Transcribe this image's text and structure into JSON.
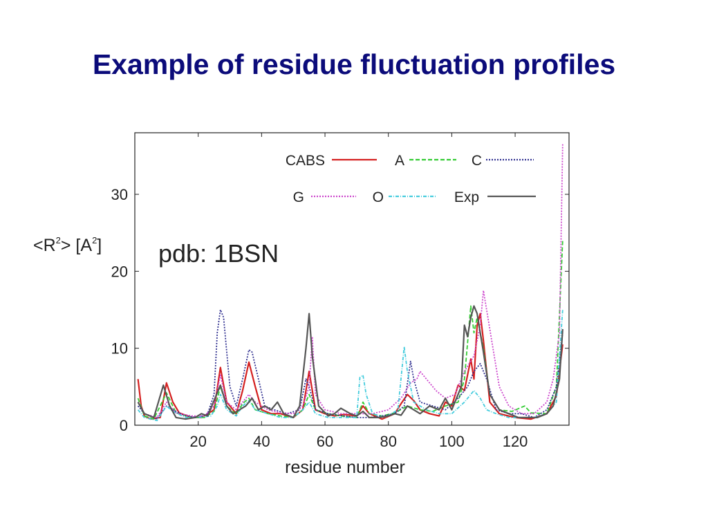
{
  "slide": {
    "title": "Example of residue fluctuation profiles"
  },
  "chart_data": {
    "type": "line",
    "annotation": "pdb: 1BSN",
    "xlabel": "residue number",
    "ylabel": {
      "main": "<R",
      "sup1": "2",
      "mid": "> [A",
      "sup2": "2",
      "end": "]"
    },
    "xlim": [
      0,
      137
    ],
    "ylim": [
      0,
      38
    ],
    "xticks": [
      20,
      40,
      60,
      80,
      100,
      120
    ],
    "yticks": [
      0,
      10,
      20,
      30
    ],
    "legend_placement": "top-right",
    "series": [
      {
        "name": "CABS",
        "color": "#d42020",
        "dash": "solid",
        "points": [
          [
            1,
            6
          ],
          [
            2,
            2.5
          ],
          [
            3,
            1.2
          ],
          [
            5,
            0.8
          ],
          [
            8,
            1
          ],
          [
            10,
            5.5
          ],
          [
            12,
            3
          ],
          [
            14,
            1.6
          ],
          [
            18,
            1
          ],
          [
            21,
            1
          ],
          [
            25,
            2
          ],
          [
            27,
            7.5
          ],
          [
            29,
            3
          ],
          [
            32,
            1.5
          ],
          [
            34,
            4.5
          ],
          [
            36,
            8.2
          ],
          [
            38,
            5
          ],
          [
            40,
            2
          ],
          [
            43,
            1.5
          ],
          [
            46,
            1.5
          ],
          [
            50,
            1
          ],
          [
            53,
            2
          ],
          [
            55,
            7
          ],
          [
            57,
            2
          ],
          [
            60,
            1.5
          ],
          [
            63,
            1.2
          ],
          [
            66,
            1.4
          ],
          [
            70,
            1.2
          ],
          [
            72,
            2.5
          ],
          [
            74,
            1.5
          ],
          [
            78,
            0.8
          ],
          [
            82,
            1.5
          ],
          [
            84,
            2.8
          ],
          [
            86,
            4
          ],
          [
            88,
            3.2
          ],
          [
            90,
            2
          ],
          [
            93,
            1.5
          ],
          [
            96,
            1.2
          ],
          [
            98,
            3
          ],
          [
            100,
            2.5
          ],
          [
            102,
            5.2
          ],
          [
            104,
            4.5
          ],
          [
            106,
            8.6
          ],
          [
            107,
            6
          ],
          [
            108,
            13
          ],
          [
            109,
            14.5
          ],
          [
            110,
            11
          ],
          [
            112,
            3
          ],
          [
            115,
            1.5
          ],
          [
            120,
            1
          ],
          [
            125,
            0.8
          ],
          [
            130,
            1.5
          ],
          [
            133,
            3.8
          ],
          [
            135,
            10.5
          ]
        ]
      },
      {
        "name": "A",
        "color": "#33cc33",
        "dash": "6,3",
        "points": [
          [
            1,
            3.5
          ],
          [
            3,
            1.2
          ],
          [
            6,
            0.8
          ],
          [
            10,
            4.2
          ],
          [
            13,
            1.6
          ],
          [
            18,
            1
          ],
          [
            22,
            1
          ],
          [
            25,
            1.8
          ],
          [
            27,
            5
          ],
          [
            29,
            2.5
          ],
          [
            32,
            1.4
          ],
          [
            34,
            2.8
          ],
          [
            36,
            3.5
          ],
          [
            38,
            2
          ],
          [
            42,
            1.5
          ],
          [
            46,
            1.2
          ],
          [
            50,
            1
          ],
          [
            53,
            2
          ],
          [
            55,
            4
          ],
          [
            57,
            2
          ],
          [
            61,
            1.5
          ],
          [
            65,
            1.2
          ],
          [
            70,
            1
          ],
          [
            72,
            3
          ],
          [
            74,
            1.5
          ],
          [
            78,
            1.2
          ],
          [
            82,
            1.6
          ],
          [
            86,
            2.5
          ],
          [
            90,
            2
          ],
          [
            94,
            1.8
          ],
          [
            98,
            2.5
          ],
          [
            102,
            3
          ],
          [
            104,
            6
          ],
          [
            106,
            15.5
          ],
          [
            107,
            12
          ],
          [
            108,
            14
          ],
          [
            110,
            10
          ],
          [
            112,
            4
          ],
          [
            115,
            2
          ],
          [
            119,
            1.8
          ],
          [
            123,
            2.5
          ],
          [
            125,
            1.6
          ],
          [
            130,
            1.5
          ],
          [
            133,
            5
          ],
          [
            135,
            24
          ]
        ]
      },
      {
        "name": "C",
        "color": "#303090",
        "dash": "2,2",
        "points": [
          [
            1,
            2.5
          ],
          [
            3,
            1.5
          ],
          [
            7,
            0.8
          ],
          [
            10,
            2.5
          ],
          [
            12,
            2
          ],
          [
            16,
            1.2
          ],
          [
            20,
            1
          ],
          [
            23,
            1.5
          ],
          [
            25,
            4
          ],
          [
            26,
            12
          ],
          [
            27,
            15
          ],
          [
            28,
            14
          ],
          [
            30,
            5
          ],
          [
            32,
            2.5
          ],
          [
            34,
            6
          ],
          [
            36,
            9.8
          ],
          [
            37,
            9.5
          ],
          [
            39,
            6
          ],
          [
            41,
            2.5
          ],
          [
            44,
            2
          ],
          [
            48,
            1.5
          ],
          [
            52,
            2
          ],
          [
            54,
            6
          ],
          [
            55,
            5
          ],
          [
            57,
            2
          ],
          [
            61,
            1.5
          ],
          [
            66,
            1.2
          ],
          [
            70,
            1
          ],
          [
            74,
            1
          ],
          [
            78,
            1.2
          ],
          [
            82,
            1.5
          ],
          [
            85,
            2.5
          ],
          [
            87,
            8.3
          ],
          [
            88,
            6
          ],
          [
            90,
            3
          ],
          [
            94,
            2.5
          ],
          [
            98,
            2
          ],
          [
            102,
            3.5
          ],
          [
            105,
            5
          ],
          [
            107,
            7
          ],
          [
            109,
            8
          ],
          [
            111,
            6
          ],
          [
            114,
            2
          ],
          [
            118,
            1.5
          ],
          [
            122,
            1.5
          ],
          [
            126,
            1
          ],
          [
            130,
            2
          ],
          [
            133,
            5
          ],
          [
            135,
            12
          ]
        ]
      },
      {
        "name": "G",
        "color": "#cc44cc",
        "dash": "2,2",
        "points": [
          [
            1,
            3
          ],
          [
            3,
            1.5
          ],
          [
            7,
            1
          ],
          [
            10,
            3
          ],
          [
            13,
            1.6
          ],
          [
            18,
            1.2
          ],
          [
            22,
            1.2
          ],
          [
            25,
            2.5
          ],
          [
            27,
            6.5
          ],
          [
            29,
            3
          ],
          [
            32,
            2
          ],
          [
            36,
            4
          ],
          [
            38,
            3
          ],
          [
            42,
            2
          ],
          [
            46,
            1.6
          ],
          [
            50,
            1.5
          ],
          [
            53,
            2.5
          ],
          [
            55,
            5
          ],
          [
            56,
            11.5
          ],
          [
            57,
            4
          ],
          [
            60,
            2
          ],
          [
            65,
            1.5
          ],
          [
            70,
            1.5
          ],
          [
            75,
            1.5
          ],
          [
            80,
            2
          ],
          [
            84,
            3.5
          ],
          [
            87,
            5.5
          ],
          [
            89,
            6
          ],
          [
            90,
            7
          ],
          [
            92,
            6
          ],
          [
            95,
            4.5
          ],
          [
            98,
            3.5
          ],
          [
            101,
            4
          ],
          [
            104,
            7
          ],
          [
            107,
            9
          ],
          [
            109,
            13
          ],
          [
            110,
            17.5
          ],
          [
            111,
            15
          ],
          [
            113,
            10
          ],
          [
            115,
            5
          ],
          [
            118,
            2.5
          ],
          [
            122,
            1.5
          ],
          [
            126,
            1.5
          ],
          [
            130,
            3
          ],
          [
            132,
            6
          ],
          [
            134,
            12
          ],
          [
            135,
            36.5
          ]
        ]
      },
      {
        "name": "O",
        "color": "#44ccdd",
        "dash": "5,2,1,2",
        "points": [
          [
            1,
            2
          ],
          [
            3,
            1
          ],
          [
            7,
            0.6
          ],
          [
            10,
            2.5
          ],
          [
            12,
            1.8
          ],
          [
            16,
            1
          ],
          [
            20,
            1
          ],
          [
            24,
            1.2
          ],
          [
            26,
            2.5
          ],
          [
            27,
            4
          ],
          [
            29,
            2
          ],
          [
            32,
            1.2
          ],
          [
            34,
            2.5
          ],
          [
            36,
            3.2
          ],
          [
            38,
            2
          ],
          [
            42,
            1.5
          ],
          [
            46,
            1
          ],
          [
            50,
            1
          ],
          [
            53,
            2
          ],
          [
            55,
            3
          ],
          [
            57,
            1.5
          ],
          [
            61,
            1
          ],
          [
            66,
            1
          ],
          [
            70,
            1
          ],
          [
            71,
            6.2
          ],
          [
            72,
            6.5
          ],
          [
            73,
            4
          ],
          [
            75,
            1.5
          ],
          [
            79,
            1
          ],
          [
            83,
            2
          ],
          [
            85,
            10.2
          ],
          [
            86,
            7
          ],
          [
            88,
            3
          ],
          [
            92,
            2
          ],
          [
            96,
            1.5
          ],
          [
            100,
            1.5
          ],
          [
            104,
            3
          ],
          [
            107,
            4.5
          ],
          [
            109,
            3.5
          ],
          [
            111,
            2
          ],
          [
            114,
            1.5
          ],
          [
            118,
            1
          ],
          [
            122,
            1
          ],
          [
            126,
            1
          ],
          [
            130,
            1.5
          ],
          [
            133,
            3
          ],
          [
            135,
            15
          ]
        ]
      },
      {
        "name": "Exp",
        "color": "#555555",
        "dash": "solid",
        "points": [
          [
            1,
            3
          ],
          [
            3,
            1.5
          ],
          [
            6,
            1
          ],
          [
            9,
            5.2
          ],
          [
            11,
            2.5
          ],
          [
            13,
            1
          ],
          [
            16,
            0.8
          ],
          [
            19,
            1
          ],
          [
            21,
            1.5
          ],
          [
            23,
            1.2
          ],
          [
            26,
            4.2
          ],
          [
            27,
            5.2
          ],
          [
            29,
            2.5
          ],
          [
            31,
            1.5
          ],
          [
            33,
            2
          ],
          [
            35,
            2.5
          ],
          [
            37,
            3.5
          ],
          [
            39,
            2
          ],
          [
            41,
            2.5
          ],
          [
            43,
            2
          ],
          [
            45,
            3
          ],
          [
            47,
            1.5
          ],
          [
            50,
            1
          ],
          [
            52,
            2.5
          ],
          [
            54,
            10
          ],
          [
            55,
            14.5
          ],
          [
            56,
            9
          ],
          [
            58,
            2.5
          ],
          [
            61,
            1.2
          ],
          [
            63,
            1.5
          ],
          [
            65,
            2.2
          ],
          [
            68,
            1.5
          ],
          [
            70,
            1.2
          ],
          [
            72,
            1.8
          ],
          [
            74,
            1
          ],
          [
            77,
            1
          ],
          [
            80,
            1.2
          ],
          [
            82,
            1.5
          ],
          [
            84,
            1.3
          ],
          [
            86,
            2.5
          ],
          [
            88,
            2
          ],
          [
            90,
            1.5
          ],
          [
            93,
            2.5
          ],
          [
            96,
            2
          ],
          [
            98,
            3.5
          ],
          [
            100,
            2
          ],
          [
            103,
            5
          ],
          [
            104,
            13
          ],
          [
            105,
            11.5
          ],
          [
            106,
            14
          ],
          [
            107,
            15.5
          ],
          [
            108,
            14.5
          ],
          [
            109,
            12
          ],
          [
            110,
            9.5
          ],
          [
            112,
            4
          ],
          [
            115,
            2
          ],
          [
            118,
            1.5
          ],
          [
            121,
            1
          ],
          [
            124,
            1
          ],
          [
            127,
            1
          ],
          [
            130,
            1.5
          ],
          [
            132,
            2.5
          ],
          [
            134,
            6
          ],
          [
            135,
            12.5
          ]
        ]
      }
    ]
  }
}
